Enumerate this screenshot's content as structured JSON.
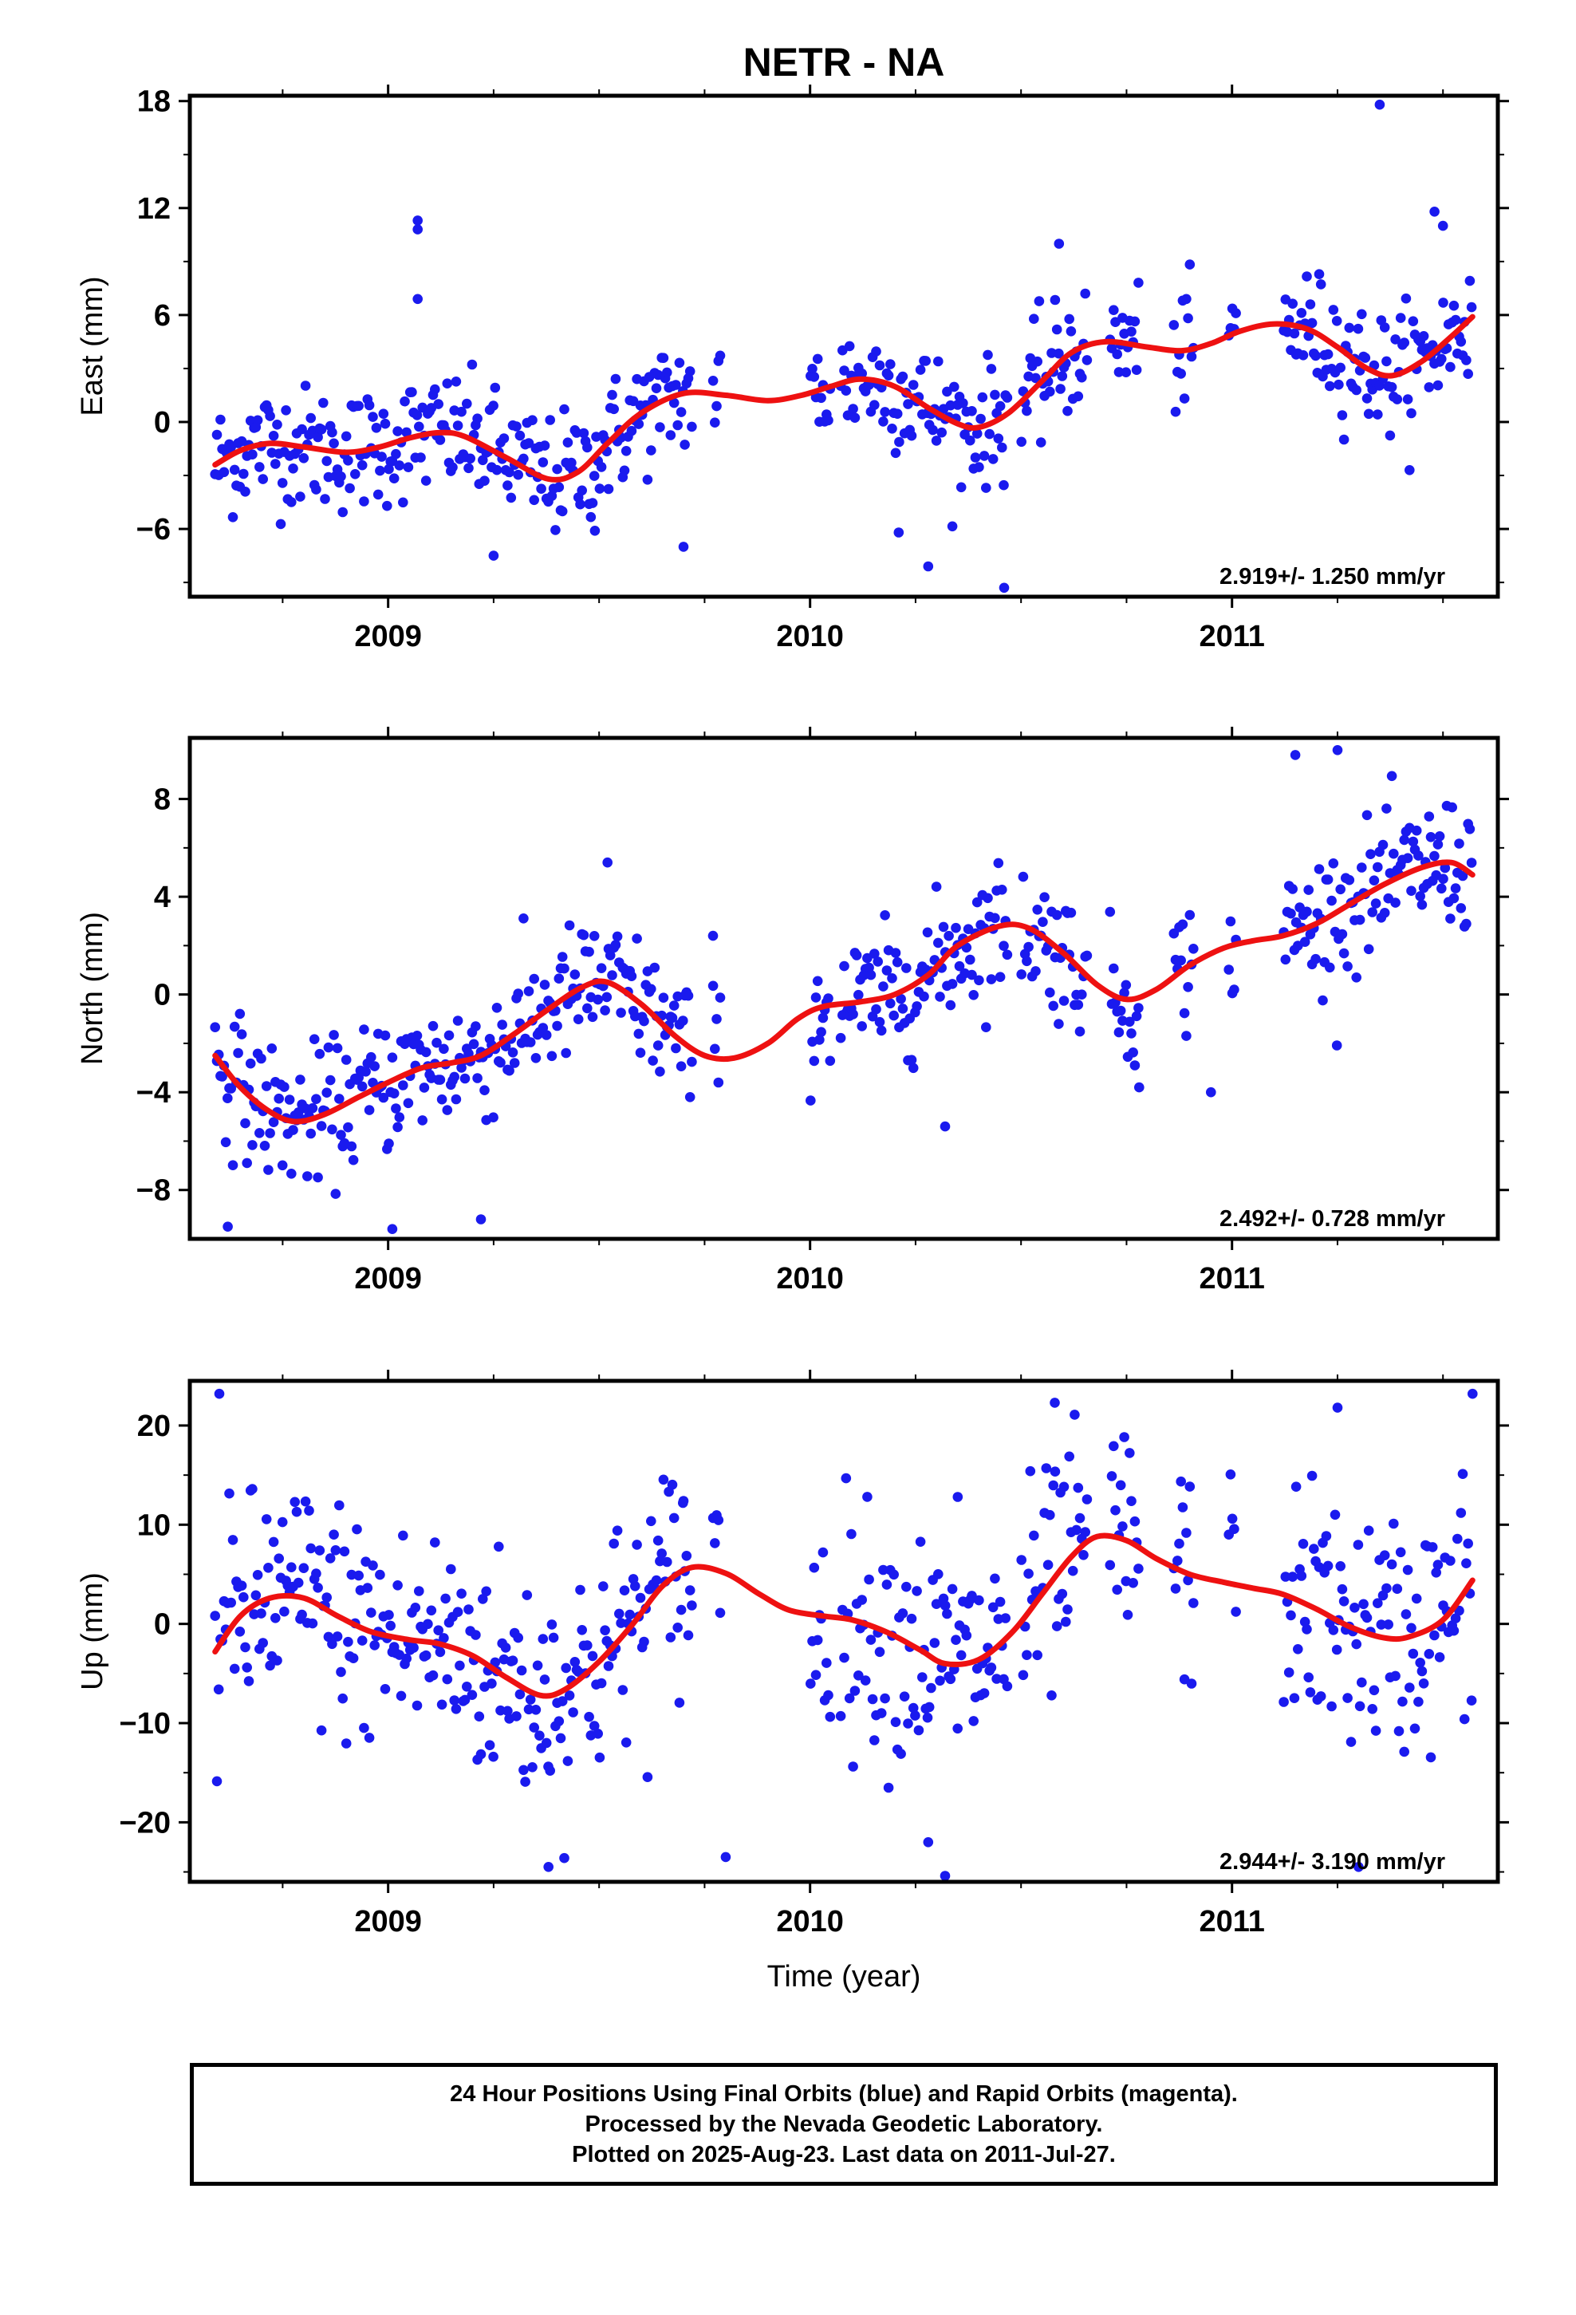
{
  "chart_data": {
    "title": "NETR - NA",
    "xlabel": "Time (year)",
    "xlim": [
      2008.53,
      2011.63
    ],
    "x_ticks": [
      "2009",
      "2010",
      "2011"
    ],
    "point_color": "#1a1aee",
    "model_color": "#ee1111",
    "panels": [
      {
        "type": "scatter",
        "ylabel": "East (mm)",
        "ylim": [
          -9.8,
          18.3
        ],
        "yticks": [
          "18",
          "12",
          "6",
          "0",
          "−6"
        ],
        "rate_text": "2.919+/- 1.250 mm/yr",
        "trend": [
          [
            2008.59,
            -2.4
          ],
          [
            2008.65,
            -1.6
          ],
          [
            2008.72,
            -1.2
          ],
          [
            2008.8,
            -1.4
          ],
          [
            2008.9,
            -1.7
          ],
          [
            2008.98,
            -1.4
          ],
          [
            2009.05,
            -0.9
          ],
          [
            2009.12,
            -0.6
          ],
          [
            2009.18,
            -0.8
          ],
          [
            2009.28,
            -2.0
          ],
          [
            2009.38,
            -3.2
          ],
          [
            2009.45,
            -2.8
          ],
          [
            2009.52,
            -1.2
          ],
          [
            2009.6,
            0.5
          ],
          [
            2009.7,
            1.6
          ],
          [
            2009.8,
            1.5
          ],
          [
            2009.9,
            1.2
          ],
          [
            2009.98,
            1.5
          ],
          [
            2010.05,
            2.0
          ],
          [
            2010.12,
            2.4
          ],
          [
            2010.2,
            2.0
          ],
          [
            2010.28,
            0.8
          ],
          [
            2010.35,
            -0.1
          ],
          [
            2010.4,
            -0.3
          ],
          [
            2010.47,
            0.5
          ],
          [
            2010.55,
            2.3
          ],
          [
            2010.62,
            3.9
          ],
          [
            2010.7,
            4.5
          ],
          [
            2010.8,
            4.2
          ],
          [
            2010.88,
            4.0
          ],
          [
            2010.95,
            4.4
          ],
          [
            2011.02,
            5.1
          ],
          [
            2011.1,
            5.5
          ],
          [
            2011.18,
            5.2
          ],
          [
            2011.25,
            4.2
          ],
          [
            2011.32,
            3.0
          ],
          [
            2011.38,
            2.6
          ],
          [
            2011.45,
            3.4
          ],
          [
            2011.52,
            4.8
          ],
          [
            2011.57,
            5.9
          ]
        ],
        "spread": 2.0,
        "outliers": [
          [
            2009.07,
            11.3
          ],
          [
            2009.07,
            10.8
          ],
          [
            2009.07,
            6.9
          ],
          [
            2010.59,
            10.0
          ],
          [
            2011.35,
            17.8
          ],
          [
            2011.48,
            11.8
          ],
          [
            2011.5,
            11.0
          ],
          [
            2009.25,
            -7.5
          ],
          [
            2010.28,
            -8.1
          ],
          [
            2010.46,
            -9.3
          ],
          [
            2009.7,
            -7.0
          ],
          [
            2009.49,
            -6.1
          ],
          [
            2010.21,
            -6.2
          ]
        ]
      },
      {
        "type": "scatter",
        "ylabel": "North (mm)",
        "ylim": [
          -10.0,
          10.5
        ],
        "yticks": [
          "8",
          "4",
          "0",
          "−4",
          "−8"
        ],
        "rate_text": "2.492+/- 0.728 mm/yr",
        "trend": [
          [
            2008.59,
            -2.5
          ],
          [
            2008.65,
            -3.8
          ],
          [
            2008.72,
            -4.8
          ],
          [
            2008.78,
            -5.2
          ],
          [
            2008.85,
            -4.9
          ],
          [
            2008.93,
            -4.2
          ],
          [
            2009.0,
            -3.6
          ],
          [
            2009.08,
            -3.0
          ],
          [
            2009.15,
            -2.8
          ],
          [
            2009.22,
            -2.5
          ],
          [
            2009.3,
            -1.6
          ],
          [
            2009.38,
            -0.6
          ],
          [
            2009.46,
            0.3
          ],
          [
            2009.52,
            0.5
          ],
          [
            2009.6,
            -0.4
          ],
          [
            2009.68,
            -1.7
          ],
          [
            2009.75,
            -2.5
          ],
          [
            2009.82,
            -2.6
          ],
          [
            2009.9,
            -2.0
          ],
          [
            2009.97,
            -1.0
          ],
          [
            2010.03,
            -0.5
          ],
          [
            2010.12,
            -0.3
          ],
          [
            2010.2,
            0.0
          ],
          [
            2010.28,
            0.8
          ],
          [
            2010.35,
            2.0
          ],
          [
            2010.45,
            2.8
          ],
          [
            2010.52,
            2.7
          ],
          [
            2010.6,
            1.7
          ],
          [
            2010.68,
            0.4
          ],
          [
            2010.75,
            -0.2
          ],
          [
            2010.82,
            0.2
          ],
          [
            2010.9,
            1.2
          ],
          [
            2010.98,
            1.9
          ],
          [
            2011.05,
            2.2
          ],
          [
            2011.12,
            2.4
          ],
          [
            2011.2,
            2.9
          ],
          [
            2011.28,
            3.7
          ],
          [
            2011.36,
            4.5
          ],
          [
            2011.45,
            5.2
          ],
          [
            2011.52,
            5.4
          ],
          [
            2011.57,
            4.9
          ]
        ],
        "spread": 1.6,
        "outliers": [
          [
            2011.15,
            9.8
          ],
          [
            2011.25,
            10.0
          ],
          [
            2008.62,
            -9.5
          ],
          [
            2009.01,
            -9.6
          ],
          [
            2009.22,
            -9.2
          ],
          [
            2010.32,
            -5.4
          ],
          [
            2010.78,
            -3.8
          ],
          [
            2010.95,
            -4.0
          ],
          [
            2009.52,
            5.4
          ],
          [
            2009.77,
            2.4
          ]
        ]
      },
      {
        "type": "scatter",
        "ylabel": "Up (mm)",
        "ylim": [
          -26.0,
          24.5
        ],
        "yticks": [
          "20",
          "10",
          "0",
          "−10",
          "−20"
        ],
        "rate_text": "2.944+/- 3.190 mm/yr",
        "trend": [
          [
            2008.59,
            -2.8
          ],
          [
            2008.65,
            0.8
          ],
          [
            2008.72,
            2.6
          ],
          [
            2008.8,
            2.6
          ],
          [
            2008.88,
            0.8
          ],
          [
            2008.96,
            -0.8
          ],
          [
            2009.05,
            -1.6
          ],
          [
            2009.12,
            -2.0
          ],
          [
            2009.2,
            -3.2
          ],
          [
            2009.28,
            -5.4
          ],
          [
            2009.36,
            -7.2
          ],
          [
            2009.42,
            -6.6
          ],
          [
            2009.5,
            -3.8
          ],
          [
            2009.58,
            0.0
          ],
          [
            2009.65,
            3.8
          ],
          [
            2009.72,
            5.7
          ],
          [
            2009.8,
            5.1
          ],
          [
            2009.88,
            3.0
          ],
          [
            2009.95,
            1.4
          ],
          [
            2010.03,
            0.8
          ],
          [
            2010.1,
            0.4
          ],
          [
            2010.18,
            -0.8
          ],
          [
            2010.26,
            -2.6
          ],
          [
            2010.32,
            -4.0
          ],
          [
            2010.4,
            -3.6
          ],
          [
            2010.48,
            -0.8
          ],
          [
            2010.55,
            3.0
          ],
          [
            2010.62,
            6.8
          ],
          [
            2010.68,
            8.8
          ],
          [
            2010.75,
            8.4
          ],
          [
            2010.82,
            6.6
          ],
          [
            2010.9,
            5.0
          ],
          [
            2010.98,
            4.2
          ],
          [
            2011.05,
            3.6
          ],
          [
            2011.12,
            3.0
          ],
          [
            2011.2,
            1.5
          ],
          [
            2011.28,
            -0.3
          ],
          [
            2011.36,
            -1.4
          ],
          [
            2011.42,
            -1.3
          ],
          [
            2011.5,
            0.4
          ],
          [
            2011.57,
            4.4
          ]
        ],
        "spread": 7.0,
        "outliers": [
          [
            2008.6,
            23.2
          ],
          [
            2011.57,
            23.2
          ],
          [
            2010.58,
            22.3
          ],
          [
            2011.25,
            21.8
          ],
          [
            2010.32,
            -25.4
          ],
          [
            2009.38,
            -24.5
          ],
          [
            2011.3,
            -24.5
          ],
          [
            2009.8,
            -23.5
          ],
          [
            2010.28,
            -22.0
          ],
          [
            2010.35,
            12.8
          ],
          [
            2009.7,
            12.4
          ]
        ]
      }
    ]
  },
  "footer": {
    "line1": "24 Hour Positions Using Final Orbits (blue) and Rapid Orbits (magenta).",
    "line2": "Processed by the Nevada Geodetic Laboratory.",
    "line3": "Plotted on 2025-Aug-23. Last data on 2011-Jul-27."
  }
}
